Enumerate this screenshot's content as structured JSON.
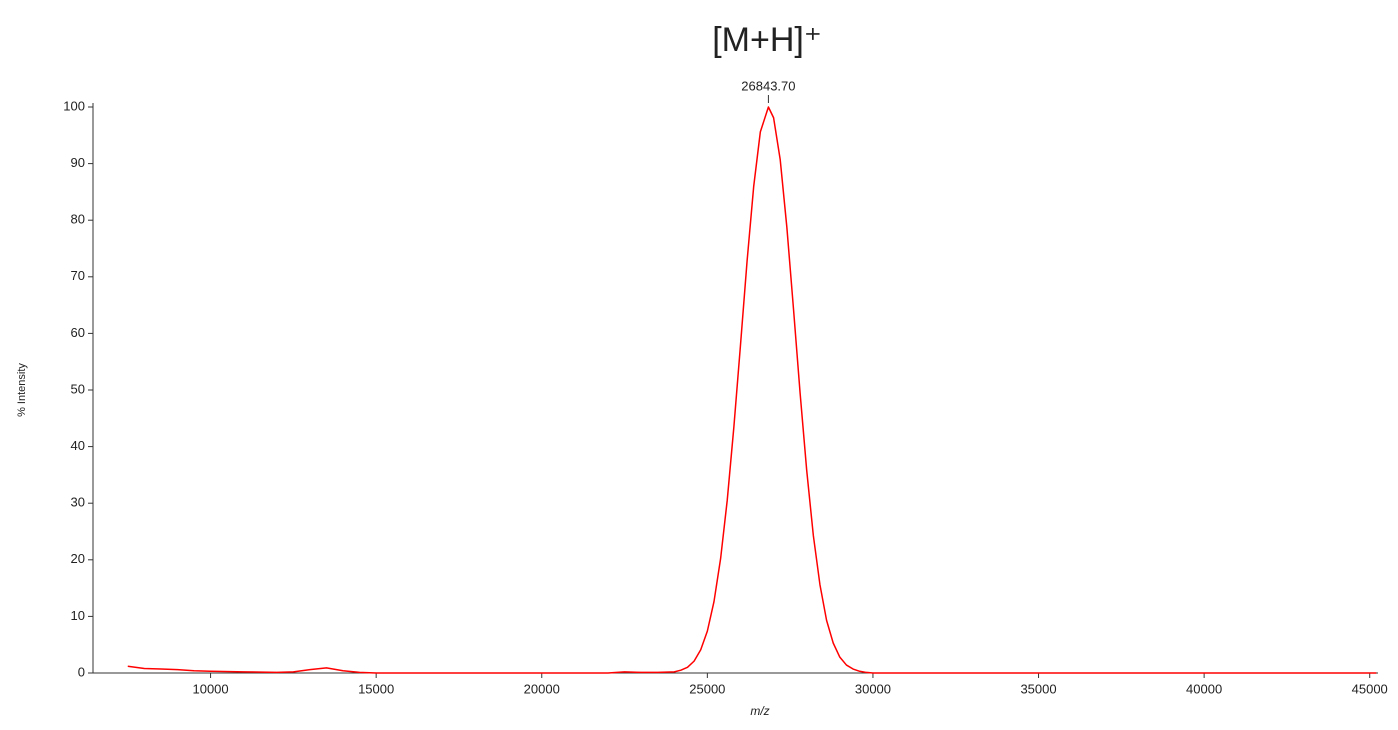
{
  "chart_data": {
    "type": "line",
    "title": "[M+H]⁺",
    "x_label": "m/z",
    "y_label": "% Intensity",
    "annotations": [
      {
        "text": "26843.70",
        "x": 26843.7,
        "y": 100
      }
    ],
    "color": "#ff0000",
    "x": [
      7500,
      8000,
      8500,
      9000,
      9500,
      10000,
      11000,
      12000,
      12500,
      13000,
      13500,
      14000,
      14500,
      15000,
      16000,
      17000,
      18000,
      19000,
      20000,
      21000,
      22000,
      22500,
      23000,
      23500,
      24000,
      24200,
      24400,
      24600,
      24800,
      25000,
      25200,
      25400,
      25600,
      25800,
      26000,
      26200,
      26400,
      26600,
      26843.7,
      27000,
      27200,
      27400,
      27600,
      27800,
      28000,
      28200,
      28400,
      28600,
      28800,
      29000,
      29200,
      29400,
      29600,
      29800,
      30000,
      31000,
      32000,
      33000,
      34000,
      35000,
      36000,
      37000,
      38000,
      39000,
      40000,
      41000,
      42000,
      43000,
      44000,
      45000,
      45200
    ],
    "values": [
      1.2,
      0.8,
      0.7,
      0.6,
      0.4,
      0.3,
      0.2,
      0.1,
      0.2,
      0.6,
      0.9,
      0.4,
      0.1,
      0,
      0,
      0,
      0,
      0,
      0,
      0,
      0,
      0.2,
      0.1,
      0.1,
      0.2,
      0.5,
      1.0,
      2.1,
      4.1,
      7.4,
      12.6,
      20.2,
      30.5,
      43.4,
      57.9,
      72.8,
      86.0,
      95.6,
      100,
      98.1,
      90.7,
      78.8,
      64.4,
      49.5,
      35.8,
      24.3,
      15.6,
      9.3,
      5.3,
      2.8,
      1.4,
      0.7,
      0.3,
      0.1,
      0,
      0,
      0,
      0,
      0,
      0,
      0,
      0,
      0,
      0,
      0,
      0,
      0,
      0,
      0,
      0,
      0
    ],
    "xlim": [
      6450,
      45250
    ],
    "ylim": [
      0,
      100
    ],
    "xticks": [
      10000,
      15000,
      20000,
      25000,
      30000,
      35000,
      40000,
      45000
    ],
    "yticks": [
      0,
      10,
      20,
      30,
      40,
      50,
      60,
      70,
      80,
      90,
      100
    ]
  }
}
